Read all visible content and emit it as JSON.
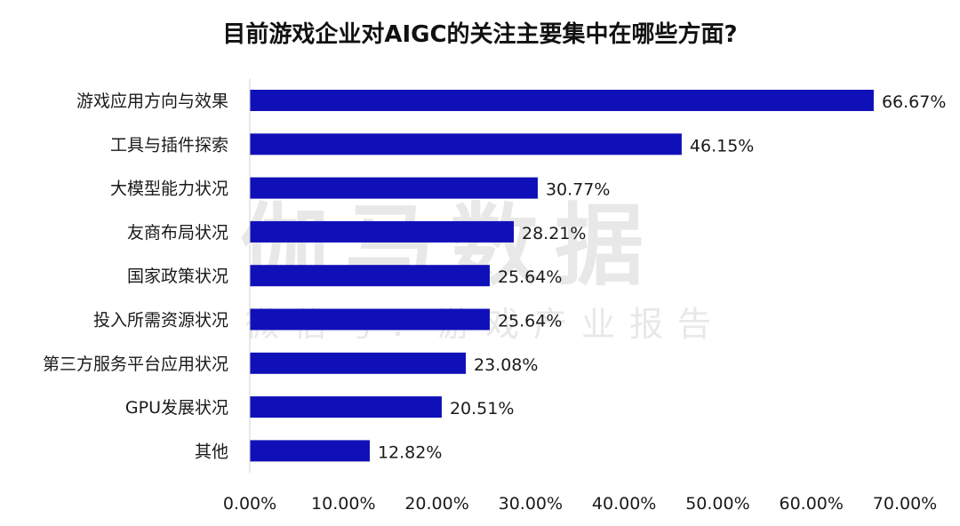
{
  "chart_data": {
    "type": "bar",
    "orientation": "horizontal",
    "title": "目前游戏企业对AIGC的关注主要集中在哪些方面?",
    "categories": [
      "游戏应用方向与效果",
      "工具与插件探索",
      "大模型能力状况",
      "友商布局状况",
      "国家政策状况",
      "投入所需资源状况",
      "第三方服务平台应用状况",
      "GPU发展状况",
      "其他"
    ],
    "values": [
      66.67,
      46.15,
      30.77,
      28.21,
      25.64,
      25.64,
      23.08,
      20.51,
      12.82
    ],
    "data_labels": [
      "66.67%",
      "46.15%",
      "30.77%",
      "28.21%",
      "25.64%",
      "25.64%",
      "23.08%",
      "20.51%",
      "12.82%"
    ],
    "xlim": [
      0,
      70
    ],
    "x_ticks": [
      0,
      10,
      20,
      30,
      40,
      50,
      60,
      70
    ],
    "x_tick_labels": [
      "0.00%",
      "10.00%",
      "20.00%",
      "30.00%",
      "40.00%",
      "50.00%",
      "60.00%",
      "70.00%"
    ],
    "xlabel": "",
    "ylabel": "",
    "grid": false,
    "legend": "none",
    "bar_color": "#1010b8"
  },
  "watermark": {
    "main": "伽马数据",
    "sub": "微信号：游戏产业报告"
  }
}
